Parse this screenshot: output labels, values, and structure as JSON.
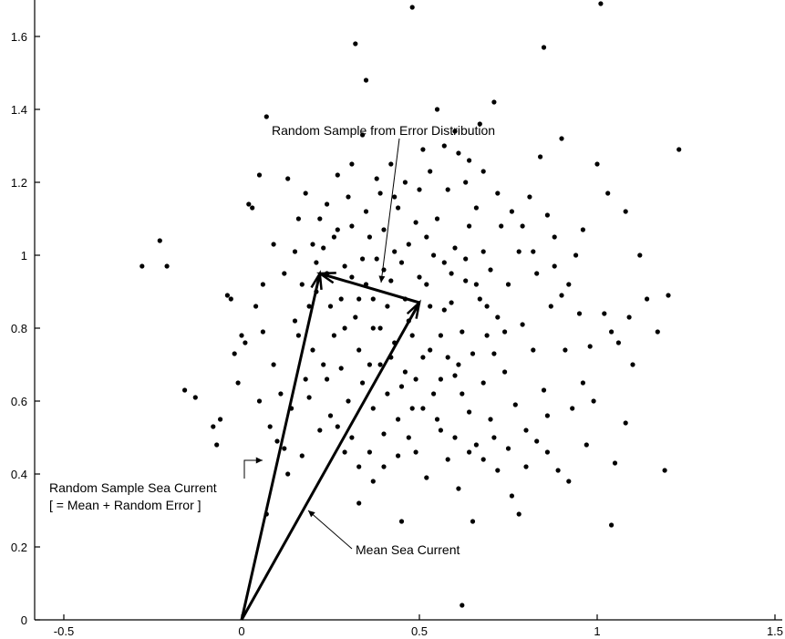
{
  "chart_data": {
    "type": "scatter",
    "title": "",
    "xlabel": "",
    "ylabel": "",
    "xlim": [
      -0.55,
      1.5
    ],
    "ylim": [
      0,
      1.7
    ],
    "x_ticks": [
      -0.5,
      0,
      0.5,
      1,
      1.5
    ],
    "x_tick_labels": [
      "-0.5",
      "0",
      "0.5",
      "1",
      "1.5"
    ],
    "y_ticks": [
      0,
      0.2,
      0.4,
      0.6,
      0.8,
      1.0,
      1.2,
      1.4,
      1.6
    ],
    "y_tick_labels": [
      "0",
      "0.2",
      "0.4",
      "0.6",
      "0.8",
      "1",
      "1.2",
      "1.4",
      "1.6"
    ],
    "points_note": "Cloud of random samples around the mean sea current (approx. 0.5, 0.87); individual dot positions are estimated.",
    "points": [
      [
        -0.28,
        0.97
      ],
      [
        -0.23,
        1.04
      ],
      [
        -0.21,
        0.97
      ],
      [
        -0.16,
        0.63
      ],
      [
        -0.13,
        0.61
      ],
      [
        -0.08,
        0.53
      ],
      [
        -0.07,
        0.48
      ],
      [
        -0.06,
        0.55
      ],
      [
        -0.04,
        0.89
      ],
      [
        -0.03,
        0.88
      ],
      [
        -0.02,
        0.73
      ],
      [
        -0.01,
        0.65
      ],
      [
        0.0,
        0.78
      ],
      [
        0.01,
        0.76
      ],
      [
        0.02,
        1.14
      ],
      [
        0.03,
        1.13
      ],
      [
        0.04,
        0.86
      ],
      [
        0.05,
        1.22
      ],
      [
        0.06,
        0.92
      ],
      [
        0.07,
        1.38
      ],
      [
        0.07,
        0.29
      ],
      [
        0.08,
        0.53
      ],
      [
        0.09,
        1.03
      ],
      [
        0.1,
        0.49
      ],
      [
        0.12,
        0.47
      ],
      [
        0.13,
        1.21
      ],
      [
        0.15,
        1.01
      ],
      [
        0.15,
        0.82
      ],
      [
        0.16,
        0.78
      ],
      [
        0.17,
        0.92
      ],
      [
        0.18,
        1.17
      ],
      [
        0.19,
        0.86
      ],
      [
        0.19,
        0.61
      ],
      [
        0.2,
        0.74
      ],
      [
        0.21,
        0.9
      ],
      [
        0.22,
        1.1
      ],
      [
        0.23,
        1.02
      ],
      [
        0.24,
        0.95
      ],
      [
        0.24,
        0.66
      ],
      [
        0.25,
        0.86
      ],
      [
        0.25,
        0.56
      ],
      [
        0.26,
        0.78
      ],
      [
        0.27,
        1.07
      ],
      [
        0.28,
        0.69
      ],
      [
        0.29,
        0.97
      ],
      [
        0.3,
        1.16
      ],
      [
        0.3,
        0.6
      ],
      [
        0.31,
        0.5
      ],
      [
        0.31,
        1.08
      ],
      [
        0.32,
        1.58
      ],
      [
        0.32,
        0.83
      ],
      [
        0.33,
        0.74
      ],
      [
        0.33,
        0.32
      ],
      [
        0.34,
        0.65
      ],
      [
        0.34,
        1.33
      ],
      [
        0.35,
        1.48
      ],
      [
        0.35,
        0.92
      ],
      [
        0.36,
        0.46
      ],
      [
        0.36,
        1.05
      ],
      [
        0.37,
        0.8
      ],
      [
        0.37,
        0.58
      ],
      [
        0.38,
        1.21
      ],
      [
        0.38,
        0.99
      ],
      [
        0.39,
        1.17
      ],
      [
        0.39,
        0.7
      ],
      [
        0.4,
        0.51
      ],
      [
        0.4,
        1.07
      ],
      [
        0.41,
        0.86
      ],
      [
        0.41,
        0.62
      ],
      [
        0.42,
        1.25
      ],
      [
        0.42,
        0.93
      ],
      [
        0.43,
        0.76
      ],
      [
        0.44,
        1.13
      ],
      [
        0.44,
        0.55
      ],
      [
        0.45,
        0.27
      ],
      [
        0.45,
        0.98
      ],
      [
        0.46,
        0.68
      ],
      [
        0.47,
        1.03
      ],
      [
        0.47,
        0.82
      ],
      [
        0.48,
        1.68
      ],
      [
        0.48,
        0.58
      ],
      [
        0.49,
        1.09
      ],
      [
        0.49,
        0.46
      ],
      [
        0.5,
        0.94
      ],
      [
        0.51,
        1.29
      ],
      [
        0.51,
        0.72
      ],
      [
        0.52,
        0.39
      ],
      [
        0.52,
        1.05
      ],
      [
        0.53,
        0.86
      ],
      [
        0.54,
        0.62
      ],
      [
        0.55,
        1.1
      ],
      [
        0.55,
        1.4
      ],
      [
        0.56,
        0.78
      ],
      [
        0.56,
        0.52
      ],
      [
        0.57,
        0.98
      ],
      [
        0.58,
        0.44
      ],
      [
        0.58,
        1.18
      ],
      [
        0.59,
        0.87
      ],
      [
        0.6,
        0.67
      ],
      [
        0.6,
        1.02
      ],
      [
        0.61,
        1.28
      ],
      [
        0.61,
        0.36
      ],
      [
        0.62,
        0.79
      ],
      [
        0.62,
        0.04
      ],
      [
        0.63,
        1.2
      ],
      [
        0.63,
        0.93
      ],
      [
        0.64,
        0.57
      ],
      [
        0.64,
        1.08
      ],
      [
        0.65,
        0.73
      ],
      [
        0.65,
        0.27
      ],
      [
        0.66,
        1.13
      ],
      [
        0.66,
        0.48
      ],
      [
        0.67,
        0.88
      ],
      [
        0.67,
        1.36
      ],
      [
        0.68,
        0.65
      ],
      [
        0.68,
        1.01
      ],
      [
        0.69,
        0.78
      ],
      [
        0.7,
        0.55
      ],
      [
        0.7,
        0.96
      ],
      [
        0.71,
        1.42
      ],
      [
        0.72,
        0.83
      ],
      [
        0.72,
        0.41
      ],
      [
        0.73,
        1.08
      ],
      [
        0.74,
        0.68
      ],
      [
        0.75,
        0.92
      ],
      [
        0.76,
        0.34
      ],
      [
        0.77,
        0.59
      ],
      [
        0.78,
        1.01
      ],
      [
        0.78,
        0.29
      ],
      [
        0.79,
        0.81
      ],
      [
        0.8,
        0.52
      ],
      [
        0.81,
        1.16
      ],
      [
        0.82,
        0.74
      ],
      [
        0.83,
        0.95
      ],
      [
        0.84,
        1.27
      ],
      [
        0.85,
        0.63
      ],
      [
        0.85,
        1.57
      ],
      [
        0.86,
        0.46
      ],
      [
        0.87,
        0.86
      ],
      [
        0.88,
        1.05
      ],
      [
        0.89,
        0.41
      ],
      [
        0.9,
        1.32
      ],
      [
        0.91,
        0.74
      ],
      [
        0.92,
        0.92
      ],
      [
        0.92,
        0.38
      ],
      [
        0.93,
        0.58
      ],
      [
        0.95,
        0.84
      ],
      [
        0.96,
        1.07
      ],
      [
        0.97,
        0.48
      ],
      [
        0.98,
        0.75
      ],
      [
        1.0,
        1.25
      ],
      [
        1.01,
        1.69
      ],
      [
        1.02,
        0.84
      ],
      [
        1.03,
        1.17
      ],
      [
        1.04,
        0.79
      ],
      [
        1.04,
        0.26
      ],
      [
        1.05,
        0.43
      ],
      [
        1.06,
        0.76
      ],
      [
        1.08,
        0.54
      ],
      [
        1.08,
        1.12
      ],
      [
        1.09,
        0.83
      ],
      [
        1.1,
        0.7
      ],
      [
        1.12,
        1.0
      ],
      [
        1.14,
        0.88
      ],
      [
        1.17,
        0.79
      ],
      [
        1.19,
        0.41
      ],
      [
        1.2,
        0.89
      ],
      [
        1.23,
        1.29
      ],
      [
        0.21,
        0.98
      ],
      [
        0.26,
        1.05
      ],
      [
        0.29,
        0.8
      ],
      [
        0.34,
        0.99
      ],
      [
        0.37,
        0.88
      ],
      [
        0.4,
        0.96
      ],
      [
        0.43,
        1.01
      ],
      [
        0.46,
        0.88
      ],
      [
        0.48,
        0.78
      ],
      [
        0.52,
        0.92
      ],
      [
        0.54,
        1.0
      ],
      [
        0.57,
        0.85
      ],
      [
        0.59,
        0.95
      ],
      [
        0.61,
        0.7
      ],
      [
        0.63,
        0.99
      ],
      [
        0.66,
        0.92
      ],
      [
        0.69,
        0.86
      ],
      [
        0.71,
        0.73
      ],
      [
        0.74,
        0.79
      ],
      [
        0.36,
        0.7
      ],
      [
        0.39,
        0.8
      ],
      [
        0.42,
        0.72
      ],
      [
        0.45,
        0.64
      ],
      [
        0.49,
        0.66
      ],
      [
        0.53,
        0.74
      ],
      [
        0.56,
        0.66
      ],
      [
        0.58,
        0.72
      ],
      [
        0.62,
        0.62
      ],
      [
        0.28,
        0.88
      ],
      [
        0.31,
        0.94
      ],
      [
        0.33,
        0.88
      ],
      [
        0.23,
        0.7
      ],
      [
        0.18,
        0.66
      ],
      [
        0.14,
        0.58
      ],
      [
        0.11,
        0.62
      ],
      [
        0.09,
        0.7
      ],
      [
        0.06,
        0.79
      ],
      [
        0.05,
        0.6
      ],
      [
        0.12,
        0.95
      ],
      [
        0.16,
        1.1
      ],
      [
        0.2,
        1.03
      ],
      [
        0.24,
        1.14
      ],
      [
        0.27,
        1.22
      ],
      [
        0.31,
        1.25
      ],
      [
        0.35,
        1.12
      ],
      [
        0.43,
        1.16
      ],
      [
        0.46,
        1.2
      ],
      [
        0.5,
        1.18
      ],
      [
        0.53,
        1.23
      ],
      [
        0.57,
        1.3
      ],
      [
        0.6,
        1.34
      ],
      [
        0.64,
        1.26
      ],
      [
        0.68,
        1.23
      ],
      [
        0.72,
        1.17
      ],
      [
        0.76,
        1.12
      ],
      [
        0.79,
        1.08
      ],
      [
        0.82,
        1.01
      ],
      [
        0.86,
        1.11
      ],
      [
        0.88,
        0.97
      ],
      [
        0.9,
        0.89
      ],
      [
        0.94,
        1.0
      ],
      [
        0.96,
        0.65
      ],
      [
        0.99,
        0.6
      ],
      [
        0.86,
        0.56
      ],
      [
        0.83,
        0.49
      ],
      [
        0.8,
        0.42
      ],
      [
        0.75,
        0.47
      ],
      [
        0.71,
        0.5
      ],
      [
        0.68,
        0.44
      ],
      [
        0.64,
        0.46
      ],
      [
        0.6,
        0.5
      ],
      [
        0.55,
        0.55
      ],
      [
        0.51,
        0.58
      ],
      [
        0.47,
        0.5
      ],
      [
        0.44,
        0.45
      ],
      [
        0.4,
        0.42
      ],
      [
        0.37,
        0.38
      ],
      [
        0.33,
        0.42
      ],
      [
        0.29,
        0.46
      ],
      [
        0.27,
        0.53
      ],
      [
        0.22,
        0.52
      ],
      [
        0.17,
        0.45
      ],
      [
        0.13,
        0.4
      ]
    ]
  },
  "annotations": {
    "error_label": "Random Sample from Error Distribution",
    "sample_label_line1": "Random Sample Sea Current",
    "sample_label_line2": "[ = Mean + Random Error ]",
    "mean_label": "Mean Sea Current"
  },
  "vectors": {
    "mean": {
      "from": [
        0,
        0
      ],
      "to": [
        0.5,
        0.87
      ]
    },
    "sample": {
      "from": [
        0,
        0
      ],
      "to": [
        0.22,
        0.95
      ]
    },
    "error": {
      "from": [
        0.5,
        0.87
      ],
      "to": [
        0.22,
        0.95
      ]
    }
  }
}
